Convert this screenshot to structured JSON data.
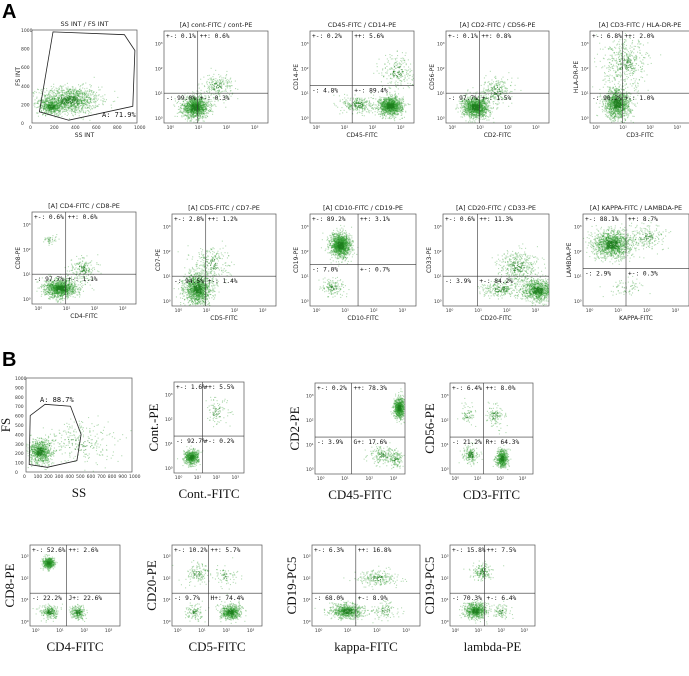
{
  "figure": {
    "section_a_label": "A",
    "section_b_label": "B",
    "colors": {
      "dot": "#2e9a2e",
      "dot_dense": "#1f7f1f",
      "frame": "#555555",
      "line": "#333333"
    }
  },
  "chart_data": [
    {
      "id": "a1",
      "type": "scatter",
      "section": "A",
      "title": "SS INT / FS INT",
      "xlabel": "SS INT",
      "ylabel": "FS INT",
      "scale": "linear",
      "xlim": [
        0,
        1000
      ],
      "ylim": [
        0,
        1000
      ],
      "xticks": [
        "0",
        "200",
        "400",
        "600",
        "800",
        "1000"
      ],
      "yticks": [
        "0",
        "200",
        "400",
        "600",
        "800",
        "1000"
      ],
      "gate_label": "A: 71.9%",
      "clusters": [
        {
          "x": 350,
          "y": 250,
          "sx": 240,
          "sy": 120,
          "n": 1300
        },
        {
          "x": 180,
          "y": 180,
          "sx": 80,
          "sy": 60,
          "n": 500
        }
      ],
      "gate_polygon": [
        [
          70,
          120
        ],
        [
          200,
          980
        ],
        [
          880,
          950
        ],
        [
          980,
          780
        ],
        [
          960,
          180
        ],
        [
          350,
          30
        ]
      ]
    },
    {
      "id": "a2",
      "type": "scatter",
      "section": "A",
      "title": "[A] cont-FITC / cont-PE",
      "xlabel": "",
      "ylabel": "",
      "scale": "log",
      "cross": [
        10,
        10
      ],
      "quadrants": {
        "ul": "+-: 0.1%",
        "ur": "++: 0.6%",
        "ll": "-: 99.0%",
        "lr": "+-: 0.3%"
      },
      "clusters": [
        {
          "x": 0.9,
          "y": 0.45,
          "sx": 0.4,
          "sy": 0.35,
          "n": 1400
        },
        {
          "x": 1.7,
          "y": 1.3,
          "sx": 0.45,
          "sy": 0.4,
          "n": 220
        }
      ]
    },
    {
      "id": "a3",
      "type": "scatter",
      "section": "A",
      "title": "CD45-FITC / CD14-PE",
      "xlabel": "CD45-FITC",
      "ylabel": "CD14-PE",
      "scale": "log",
      "cross": [
        20,
        20
      ],
      "quadrants": {
        "ul": "+-: 0.2%",
        "ur": "++: 5.6%",
        "ll": "-: 4.8%",
        "lr": "+-: 89.4%"
      },
      "clusters": [
        {
          "x": 2.65,
          "y": 0.5,
          "sx": 0.35,
          "sy": 0.3,
          "n": 1300
        },
        {
          "x": 1.5,
          "y": 0.55,
          "sx": 0.45,
          "sy": 0.3,
          "n": 280
        },
        {
          "x": 2.9,
          "y": 1.9,
          "sx": 0.5,
          "sy": 0.6,
          "n": 220
        }
      ]
    },
    {
      "id": "a4",
      "type": "scatter",
      "section": "A",
      "title": "[A] CD2-FITC / CD56-PE",
      "xlabel": "CD2-FITC",
      "ylabel": "CD56-PE",
      "scale": "log",
      "cross": [
        10,
        10
      ],
      "quadrants": {
        "ul": "+-: 0.1%",
        "ur": "++: 0.8%",
        "ll": "-: 97.7%",
        "lr": "+-: 1.5%"
      },
      "clusters": [
        {
          "x": 0.85,
          "y": 0.45,
          "sx": 0.4,
          "sy": 0.35,
          "n": 1400
        },
        {
          "x": 1.6,
          "y": 1.1,
          "sx": 0.45,
          "sy": 0.45,
          "n": 250
        }
      ]
    },
    {
      "id": "a5",
      "type": "scatter",
      "section": "A",
      "title": "[A] CD3-FITC / HLA-DR-PE",
      "xlabel": "CD3-FITC",
      "ylabel": "HLA-DR-PE",
      "scale": "log",
      "cross": [
        10,
        10
      ],
      "quadrants": {
        "ul": "+-: 6.8%",
        "ur": "++: 2.0%",
        "ll": "-: 90.2%",
        "lr": "+-: 1.0%"
      },
      "clusters": [
        {
          "x": 0.8,
          "y": 0.6,
          "sx": 0.4,
          "sy": 0.5,
          "n": 1300
        },
        {
          "x": 1.1,
          "y": 2.2,
          "sx": 0.7,
          "sy": 0.8,
          "n": 450
        }
      ]
    },
    {
      "id": "a6",
      "type": "scatter",
      "section": "A",
      "title": "[A] CD4-FITC / CD8-PE",
      "xlabel": "CD4-FITC",
      "ylabel": "CD8-PE",
      "scale": "log",
      "cross": [
        10,
        10
      ],
      "quadrants": {
        "ul": "+-: 0.6%",
        "ur": "++: 0.6%",
        "ll": "-: 97.7%",
        "lr": "+-: 1.1%"
      },
      "clusters": [
        {
          "x": 0.8,
          "y": 0.45,
          "sx": 0.45,
          "sy": 0.3,
          "n": 1400
        },
        {
          "x": 1.6,
          "y": 1.2,
          "sx": 0.4,
          "sy": 0.45,
          "n": 200
        },
        {
          "x": 0.45,
          "y": 2.4,
          "sx": 0.2,
          "sy": 0.2,
          "n": 40
        }
      ]
    },
    {
      "id": "a7",
      "type": "scatter",
      "section": "A",
      "title": "[A] CD5-FITC / CD7-PE",
      "xlabel": "CD5-FITC",
      "ylabel": "CD7-PE",
      "scale": "log",
      "cross": [
        10,
        10
      ],
      "quadrants": {
        "ul": "+-: 2.8%",
        "ur": "++: 1.2%",
        "ll": "-: 94.5%",
        "lr": "+-: 1.4%"
      },
      "clusters": [
        {
          "x": 0.7,
          "y": 0.5,
          "sx": 0.4,
          "sy": 0.5,
          "n": 1400
        },
        {
          "x": 1.2,
          "y": 1.5,
          "sx": 0.55,
          "sy": 0.6,
          "n": 250
        }
      ]
    },
    {
      "id": "a8",
      "type": "scatter",
      "section": "A",
      "title": "[A] CD10-FITC / CD19-PE",
      "xlabel": "CD10-FITC",
      "ylabel": "CD19-PE",
      "scale": "log",
      "cross": [
        30,
        30
      ],
      "quadrants": {
        "ul": "+-: 89.2%",
        "ur": "++: 3.1%",
        "ll": "-: 7.0%",
        "lr": "+-: 0.7%"
      },
      "clusters": [
        {
          "x": 0.85,
          "y": 2.25,
          "sx": 0.3,
          "sy": 0.4,
          "n": 1500
        },
        {
          "x": 0.6,
          "y": 0.55,
          "sx": 0.35,
          "sy": 0.3,
          "n": 150
        }
      ]
    },
    {
      "id": "a9",
      "type": "scatter",
      "section": "A",
      "title": "[A] CD20-FITC / CD33-PE",
      "xlabel": "CD20-FITC",
      "ylabel": "CD33-PE",
      "scale": "log",
      "cross": [
        10,
        10
      ],
      "quadrants": {
        "ul": "+-: 0.6%",
        "ur": "++: 11.3%",
        "ll": "-: 3.9%",
        "lr": "+-: 84.2%"
      },
      "clusters": [
        {
          "x": 3.1,
          "y": 0.45,
          "sx": 0.45,
          "sy": 0.35,
          "n": 1000
        },
        {
          "x": 2.4,
          "y": 1.4,
          "sx": 0.6,
          "sy": 0.55,
          "n": 400
        },
        {
          "x": 1.8,
          "y": 0.5,
          "sx": 0.6,
          "sy": 0.3,
          "n": 250
        }
      ]
    },
    {
      "id": "a10",
      "type": "scatter",
      "section": "A",
      "title": "[A] KAPPA-FITC / LAMBDA-PE",
      "xlabel": "KAPPA-FITC",
      "ylabel": "LAMBDA-PE",
      "scale": "log",
      "cross": [
        20,
        20
      ],
      "quadrants": {
        "ul": "+-: 88.1%",
        "ur": "++: 8.7%",
        "ll": "-: 2.9%",
        "lr": "+-: 0.3%"
      },
      "clusters": [
        {
          "x": 0.8,
          "y": 2.3,
          "sx": 0.55,
          "sy": 0.45,
          "n": 1400
        },
        {
          "x": 2.0,
          "y": 2.6,
          "sx": 0.6,
          "sy": 0.45,
          "n": 200
        },
        {
          "x": 1.3,
          "y": 0.6,
          "sx": 0.5,
          "sy": 0.3,
          "n": 70
        }
      ]
    },
    {
      "id": "b1",
      "type": "scatter",
      "section": "B",
      "title": "",
      "xlabel": "SS",
      "ylabel": "FS",
      "scale": "linear",
      "xlim": [
        0,
        1000
      ],
      "ylim": [
        0,
        1000
      ],
      "xticks": [
        "0",
        "100",
        "200",
        "300",
        "400",
        "500",
        "600",
        "700",
        "800",
        "900",
        "1000"
      ],
      "yticks": [
        "0",
        "100",
        "200",
        "300",
        "400",
        "500",
        "600",
        "700",
        "800",
        "900",
        "1000"
      ],
      "gate_label": "A: 88.7%",
      "clusters": [
        {
          "x": 130,
          "y": 220,
          "sx": 90,
          "sy": 110,
          "n": 1100
        },
        {
          "x": 500,
          "y": 300,
          "sx": 300,
          "sy": 200,
          "n": 350
        }
      ],
      "gate_polygon": [
        [
          30,
          80
        ],
        [
          40,
          600
        ],
        [
          180,
          720
        ],
        [
          420,
          700
        ],
        [
          520,
          400
        ],
        [
          480,
          120
        ],
        [
          200,
          50
        ]
      ]
    },
    {
      "id": "b2",
      "type": "scatter",
      "section": "B",
      "title": "",
      "xlabel": "Cont.-FITC",
      "ylabel": "Cont.-PE",
      "scale": "log",
      "cross": [
        20,
        20
      ],
      "quadrants": {
        "ul": "+-: 1.6%",
        "ur": "++: 5.5%",
        "ll": "-: 92.7%",
        "lr": "+-: 0.2%"
      },
      "clusters": [
        {
          "x": 0.7,
          "y": 0.45,
          "sx": 0.3,
          "sy": 0.25,
          "n": 900
        },
        {
          "x": 2.0,
          "y": 2.3,
          "sx": 0.6,
          "sy": 0.55,
          "n": 120
        }
      ]
    },
    {
      "id": "b3",
      "type": "scatter",
      "section": "B",
      "title": "",
      "xlabel": "CD45-FITC",
      "ylabel": "CD2-PE",
      "scale": "log",
      "cross": [
        20,
        20
      ],
      "quadrants": {
        "ul": "+-: 0.2%",
        "ur": "++: 78.3%",
        "ll": "-: 3.9%",
        "lr": "G+: 17.6%"
      },
      "clusters": [
        {
          "x": 3.25,
          "y": 2.5,
          "sx": 0.18,
          "sy": 0.35,
          "n": 1100
        },
        {
          "x": 2.6,
          "y": 0.6,
          "sx": 0.5,
          "sy": 0.3,
          "n": 250
        },
        {
          "x": 3.1,
          "y": 0.4,
          "sx": 0.2,
          "sy": 0.25,
          "n": 150
        }
      ]
    },
    {
      "id": "b4",
      "type": "scatter",
      "section": "B",
      "title": "",
      "xlabel": "CD3-FITC",
      "ylabel": "CD56-PE",
      "scale": "log",
      "cross": [
        20,
        20
      ],
      "quadrants": {
        "ul": "+-: 6.4%",
        "ur": "++: 8.0%",
        "ll": "-: 21.2%",
        "lr": "R+: 64.3%"
      },
      "clusters": [
        {
          "x": 2.1,
          "y": 0.45,
          "sx": 0.22,
          "sy": 0.3,
          "n": 800
        },
        {
          "x": 0.7,
          "y": 0.6,
          "sx": 0.3,
          "sy": 0.3,
          "n": 250
        },
        {
          "x": 1.8,
          "y": 2.2,
          "sx": 0.35,
          "sy": 0.4,
          "n": 160
        },
        {
          "x": 0.6,
          "y": 2.2,
          "sx": 0.3,
          "sy": 0.35,
          "n": 90
        }
      ]
    },
    {
      "id": "b5",
      "type": "scatter",
      "section": "B",
      "title": "",
      "xlabel": "CD4-FITC",
      "ylabel": "CD8-PE",
      "scale": "log",
      "cross": [
        20,
        20
      ],
      "quadrants": {
        "ul": "+-: 52.6%",
        "ur": "++: 2.6%",
        "ll": "-: 22.2%",
        "lr": "J+: 22.6%"
      },
      "clusters": [
        {
          "x": 0.55,
          "y": 2.7,
          "sx": 0.18,
          "sy": 0.2,
          "n": 750
        },
        {
          "x": 0.6,
          "y": 0.45,
          "sx": 0.3,
          "sy": 0.25,
          "n": 350
        },
        {
          "x": 1.75,
          "y": 0.45,
          "sx": 0.25,
          "sy": 0.25,
          "n": 350
        }
      ]
    },
    {
      "id": "b6",
      "type": "scatter",
      "section": "B",
      "title": "",
      "xlabel": "CD5-FITC",
      "ylabel": "CD20-PE",
      "scale": "log",
      "cross": [
        20,
        20
      ],
      "quadrants": {
        "ul": "+-: 10.2%",
        "ur": "++: 5.7%",
        "ll": "-: 9.7%",
        "lr": "H+: 74.4%"
      },
      "clusters": [
        {
          "x": 2.2,
          "y": 0.45,
          "sx": 0.35,
          "sy": 0.28,
          "n": 900
        },
        {
          "x": 0.8,
          "y": 2.2,
          "sx": 0.45,
          "sy": 0.4,
          "n": 180
        },
        {
          "x": 0.7,
          "y": 0.45,
          "sx": 0.3,
          "sy": 0.3,
          "n": 150
        },
        {
          "x": 2.0,
          "y": 2.1,
          "sx": 0.4,
          "sy": 0.4,
          "n": 100
        }
      ]
    },
    {
      "id": "b7",
      "type": "scatter",
      "section": "B",
      "title": "",
      "xlabel": "kappa-FITC",
      "ylabel": "CD19-PC5",
      "scale": "log",
      "cross": [
        20,
        20
      ],
      "quadrants": {
        "ul": "+-: 6.3%",
        "ur": "++: 16.8%",
        "ll": "-: 68.0%",
        "lr": "+-: 8.9%"
      },
      "clusters": [
        {
          "x": 1.0,
          "y": 0.5,
          "sx": 0.45,
          "sy": 0.3,
          "n": 1000
        },
        {
          "x": 2.0,
          "y": 2.0,
          "sx": 0.55,
          "sy": 0.3,
          "n": 300
        },
        {
          "x": 2.3,
          "y": 0.5,
          "sx": 0.4,
          "sy": 0.3,
          "n": 150
        }
      ]
    },
    {
      "id": "b8",
      "type": "scatter",
      "section": "B",
      "title": "",
      "xlabel": "lambda-PE",
      "ylabel": "CD19-PC5",
      "scale": "log",
      "cross": [
        20,
        20
      ],
      "quadrants": {
        "ul": "+-: 15.8%",
        "ur": "++: 7.5%",
        "ll": "-: 70.3%",
        "lr": "+-: 6.4%"
      },
      "clusters": [
        {
          "x": 0.9,
          "y": 0.5,
          "sx": 0.4,
          "sy": 0.3,
          "n": 1000
        },
        {
          "x": 1.2,
          "y": 2.3,
          "sx": 0.35,
          "sy": 0.3,
          "n": 250
        },
        {
          "x": 2.0,
          "y": 0.5,
          "sx": 0.3,
          "sy": 0.3,
          "n": 120
        }
      ]
    }
  ]
}
